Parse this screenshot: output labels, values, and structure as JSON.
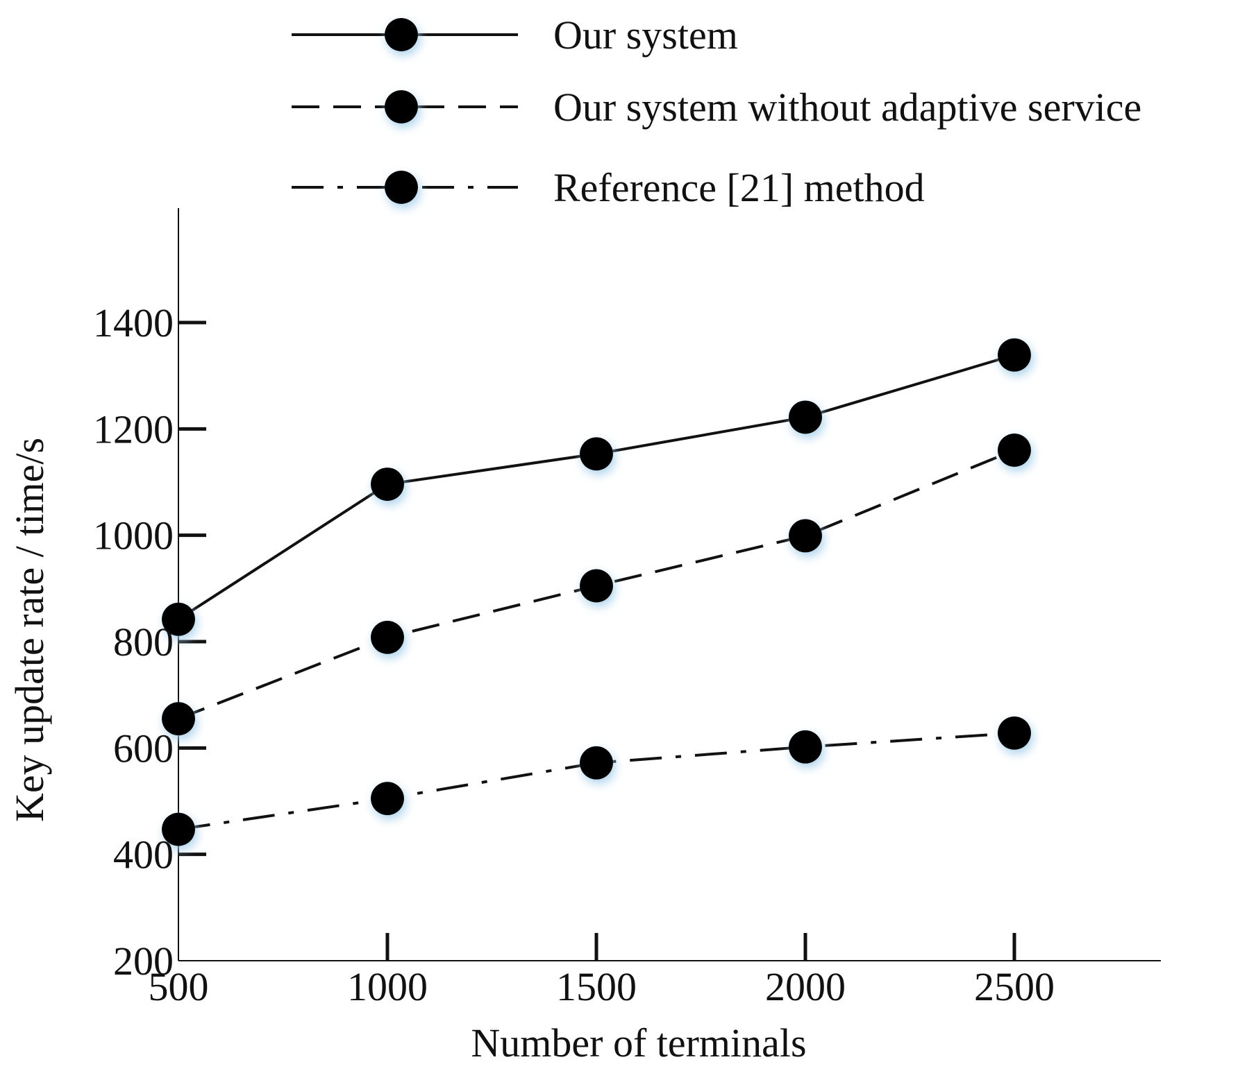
{
  "chart_data": {
    "type": "line",
    "title": "",
    "xlabel": "Number of terminals",
    "ylabel": "Key update rate / time/s",
    "x": [
      500,
      1000,
      1500,
      2000,
      2500
    ],
    "x_tick_labels": [
      "500",
      "1000",
      "1500",
      "2000",
      "2500"
    ],
    "y_ticks": [
      200,
      400,
      600,
      800,
      1000,
      1200,
      1400
    ],
    "y_tick_labels": [
      "200",
      "400",
      "600",
      "800",
      "1000",
      "1200",
      "1400"
    ],
    "xlim": [
      500,
      2850
    ],
    "ylim": [
      200,
      1600
    ],
    "grid": false,
    "legend_position": "top",
    "series": [
      {
        "name": "Our system",
        "line_style": "solid",
        "marker": "filled-circle",
        "values": [
          842,
          1096,
          1153,
          1222,
          1339
        ]
      },
      {
        "name": "Our system without adaptive service",
        "line_style": "dashed",
        "marker": "filled-circle",
        "values": [
          655,
          808,
          905,
          999,
          1160
        ]
      },
      {
        "name": "Reference [21] method",
        "line_style": "dash-dot",
        "marker": "filled-circle",
        "values": [
          447,
          505,
          572,
          602,
          628
        ]
      }
    ],
    "colors": {
      "line": "#111111",
      "marker": "#000000",
      "marker_glow": "#9ecbe8"
    }
  }
}
